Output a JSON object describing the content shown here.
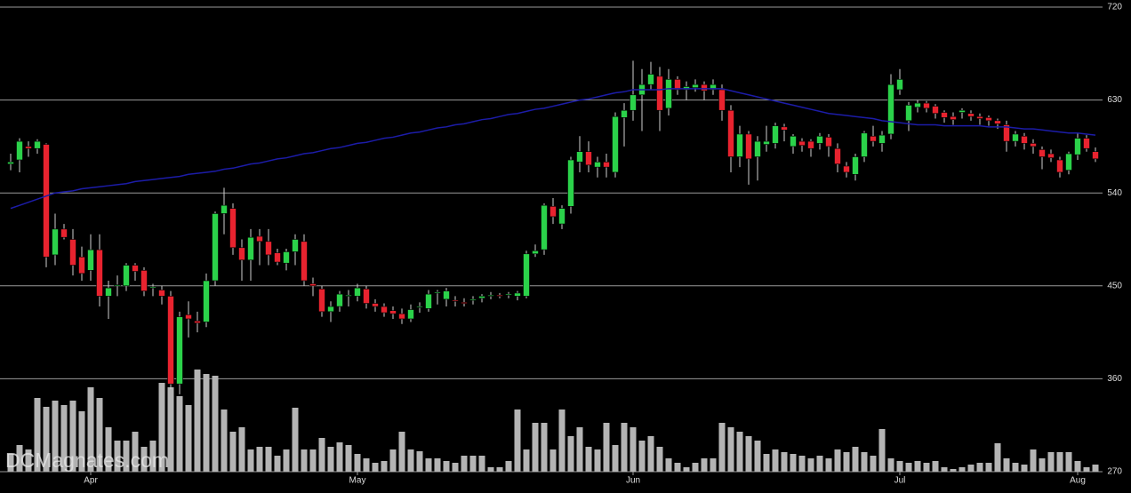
{
  "chart_data": {
    "type": "candlestick",
    "watermark": "DCMagnates.com",
    "categories": [
      null,
      null,
      null,
      null,
      null,
      null,
      null,
      null,
      null,
      "Apr",
      null,
      null,
      null,
      null,
      null,
      null,
      null,
      null,
      null,
      null,
      null,
      null,
      null,
      null,
      null,
      null,
      null,
      null,
      null,
      null,
      null,
      null,
      null,
      null,
      null,
      null,
      null,
      null,
      null,
      "May",
      null,
      null,
      null,
      null,
      null,
      null,
      null,
      null,
      null,
      null,
      null,
      null,
      null,
      null,
      null,
      null,
      null,
      null,
      null,
      null,
      null,
      null,
      null,
      null,
      null,
      null,
      null,
      null,
      null,
      null,
      "Jun",
      null,
      null,
      null,
      null,
      null,
      null,
      null,
      null,
      null,
      null,
      null,
      null,
      null,
      null,
      null,
      null,
      null,
      null,
      null,
      null,
      null,
      null,
      null,
      null,
      null,
      null,
      null,
      null,
      null,
      "Jul",
      null,
      null,
      null,
      null,
      null,
      null,
      null,
      null,
      null,
      null,
      null,
      null,
      null,
      null,
      null,
      null,
      null,
      null,
      null,
      "Aug",
      null,
      null
    ],
    "open": [
      568,
      572,
      585,
      583,
      587,
      480,
      505,
      495,
      478,
      465,
      485,
      440,
      450,
      450,
      470,
      465,
      448,
      446,
      440,
      355,
      422,
      416,
      415,
      455,
      520,
      525,
      487,
      475,
      498,
      493,
      482,
      472,
      483,
      493,
      452,
      447,
      425,
      430,
      440,
      440,
      447,
      433,
      430,
      426,
      423,
      418,
      429,
      428,
      443,
      437,
      436,
      434,
      436,
      438,
      440,
      441,
      441,
      440,
      440,
      481,
      485,
      527,
      510,
      527,
      570,
      580,
      565,
      570,
      560,
      613,
      620,
      635,
      645,
      653,
      622,
      650,
      640,
      642,
      645,
      640,
      640,
      620,
      575,
      597,
      575,
      587,
      588,
      604,
      585,
      590,
      590,
      588,
      594,
      583,
      566,
      558,
      575,
      595,
      588,
      597,
      640,
      610,
      623,
      627,
      624,
      618,
      614,
      618,
      617,
      614,
      613,
      610,
      606,
      590,
      595,
      588,
      582,
      578,
      572,
      562,
      577,
      593,
      580
    ],
    "high": [
      578,
      593,
      590,
      592,
      588,
      520,
      510,
      505,
      488,
      500,
      500,
      455,
      460,
      472,
      472,
      468,
      452,
      450,
      445,
      425,
      435,
      425,
      462,
      522,
      545,
      530,
      495,
      505,
      505,
      505,
      486,
      486,
      500,
      500,
      458,
      450,
      435,
      445,
      446,
      452,
      450,
      437,
      433,
      430,
      428,
      432,
      434,
      446,
      446,
      448,
      440,
      438,
      440,
      442,
      444,
      443,
      444,
      445,
      484,
      490,
      530,
      535,
      528,
      575,
      595,
      590,
      575,
      578,
      618,
      627,
      668,
      660,
      667,
      662,
      660,
      653,
      648,
      650,
      648,
      650,
      645,
      625,
      605,
      600,
      595,
      605,
      608,
      607,
      597,
      593,
      592,
      598,
      597,
      588,
      570,
      578,
      600,
      605,
      600,
      655,
      660,
      628,
      630,
      629,
      626,
      620,
      618,
      622,
      620,
      617,
      615,
      612,
      610,
      600,
      598,
      592,
      585,
      582,
      575,
      580,
      598,
      596,
      584
    ],
    "low": [
      562,
      560,
      575,
      578,
      468,
      470,
      495,
      460,
      455,
      455,
      430,
      418,
      440,
      445,
      455,
      440,
      440,
      432,
      350,
      345,
      400,
      405,
      410,
      450,
      500,
      480,
      455,
      455,
      470,
      470,
      470,
      465,
      470,
      450,
      440,
      420,
      415,
      425,
      430,
      435,
      428,
      425,
      420,
      418,
      413,
      415,
      424,
      425,
      432,
      430,
      430,
      430,
      432,
      434,
      437,
      438,
      438,
      436,
      438,
      478,
      480,
      510,
      505,
      520,
      560,
      560,
      555,
      555,
      555,
      585,
      610,
      600,
      640,
      600,
      615,
      635,
      630,
      638,
      630,
      635,
      610,
      560,
      565,
      548,
      552,
      580,
      583,
      590,
      578,
      580,
      575,
      582,
      575,
      560,
      555,
      552,
      570,
      585,
      580,
      592,
      635,
      600,
      618,
      618,
      612,
      608,
      606,
      612,
      610,
      606,
      605,
      602,
      580,
      585,
      582,
      578,
      563,
      570,
      555,
      558,
      572,
      580,
      570
    ],
    "close": [
      570,
      590,
      583,
      590,
      478,
      505,
      497,
      470,
      462,
      485,
      440,
      448,
      451,
      470,
      464,
      445,
      449,
      440,
      355,
      420,
      418,
      414,
      455,
      520,
      528,
      487,
      475,
      497,
      493,
      480,
      473,
      483,
      495,
      455,
      450,
      425,
      430,
      442,
      441,
      448,
      433,
      430,
      424,
      423,
      418,
      427,
      430,
      442,
      444,
      445,
      435,
      433,
      437,
      440,
      441,
      440,
      442,
      443,
      481,
      484,
      528,
      517,
      525,
      572,
      580,
      567,
      570,
      565,
      614,
      620,
      635,
      645,
      655,
      620,
      650,
      640,
      643,
      645,
      639,
      645,
      620,
      575,
      597,
      573,
      590,
      590,
      605,
      601,
      595,
      586,
      583,
      595,
      585,
      568,
      560,
      575,
      598,
      590,
      596,
      645,
      650,
      625,
      627,
      622,
      617,
      613,
      611,
      620,
      614,
      612,
      610,
      607,
      590,
      597,
      588,
      585,
      575,
      574,
      560,
      578,
      593,
      583,
      573
    ],
    "volume": [
      20,
      30,
      25,
      83,
      73,
      80,
      75,
      80,
      68,
      95,
      83,
      50,
      35,
      35,
      45,
      28,
      35,
      100,
      95,
      85,
      75,
      115,
      110,
      108,
      70,
      45,
      50,
      25,
      28,
      28,
      18,
      25,
      72,
      25,
      25,
      38,
      28,
      33,
      30,
      20,
      15,
      10,
      12,
      25,
      45,
      25,
      23,
      15,
      15,
      12,
      10,
      18,
      18,
      18,
      5,
      5,
      12,
      70,
      25,
      55,
      55,
      25,
      70,
      40,
      50,
      28,
      25,
      55,
      30,
      55,
      50,
      35,
      40,
      28,
      15,
      10,
      5,
      10,
      15,
      15,
      55,
      50,
      45,
      40,
      35,
      20,
      25,
      22,
      20,
      18,
      15,
      18,
      15,
      25,
      22,
      28,
      22,
      18,
      48,
      15,
      12,
      10,
      12,
      10,
      12,
      5,
      3,
      5,
      8,
      10,
      10,
      32,
      15,
      10,
      8,
      25,
      15,
      22,
      22,
      22,
      12,
      5,
      8
    ],
    "ma": [
      525,
      528,
      531,
      534,
      537,
      540,
      541,
      542,
      544,
      545,
      546,
      547,
      548,
      549,
      551,
      552,
      553,
      554,
      555,
      556,
      558,
      559,
      560,
      561,
      563,
      564,
      566,
      568,
      569,
      571,
      573,
      574,
      576,
      578,
      579,
      581,
      583,
      584,
      586,
      588,
      589,
      591,
      593,
      594,
      596,
      598,
      599,
      601,
      603,
      604,
      606,
      607,
      609,
      611,
      612,
      614,
      616,
      617,
      619,
      621,
      622,
      624,
      626,
      628,
      630,
      631,
      633,
      635,
      637,
      638,
      640,
      640,
      640,
      640,
      641,
      641,
      641,
      641,
      641,
      641,
      641,
      639,
      637,
      635,
      633,
      631,
      629,
      627,
      625,
      623,
      621,
      619,
      617,
      616,
      615,
      614,
      613,
      612,
      610,
      609,
      608,
      607,
      606,
      606,
      606,
      605,
      605,
      605,
      605,
      605,
      604,
      604,
      604,
      603,
      602,
      602,
      601,
      600,
      599,
      598,
      598,
      597,
      596
    ],
    "ylim": [
      270,
      720
    ],
    "yticks": [
      270,
      360,
      450,
      540,
      630,
      720
    ],
    "grid": true,
    "up_color": "#2bd24a",
    "down_color": "#e8232f",
    "ma_color": "#1c1ca8",
    "volume_color": "#b4b4b4"
  }
}
